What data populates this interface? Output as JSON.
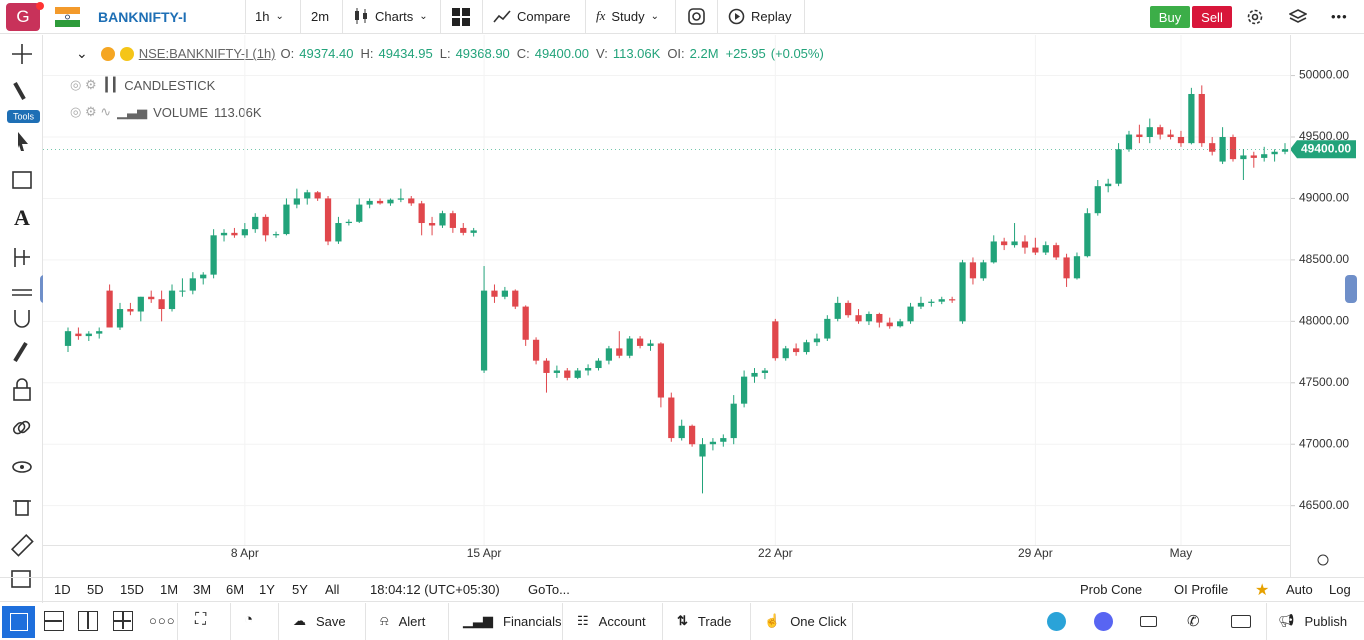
{
  "top_bar": {
    "symbol": "BANKNIFTY-I",
    "avatar": "G",
    "interval": "1h",
    "interval2": "2m",
    "charts": "Charts",
    "compare": "Compare",
    "study": "Study",
    "replay": "Replay",
    "buy": "Buy",
    "sell": "Sell"
  },
  "left_bar": {
    "tools": "Tools"
  },
  "legend": {
    "symbol": "NSE:BANKNIFTY-I (1h)",
    "fields": [
      {
        "label": "O:",
        "value": "49374.40"
      },
      {
        "label": "H:",
        "value": "49434.95"
      },
      {
        "label": "L:",
        "value": "49368.90"
      },
      {
        "label": "C:",
        "value": "49400.00"
      },
      {
        "label": "V:",
        "value": "113.06K"
      },
      {
        "label": "OI:",
        "value": "2.2M"
      }
    ],
    "change": "+25.95",
    "change_pct": "(+0.05%)",
    "study1": "CANDLESTICK",
    "study2": "VOLUME",
    "study2_value": "113.06K"
  },
  "chart_data": {
    "type": "candlestick",
    "up_color": "#22a37a",
    "down_color": "#e0474c",
    "grid": true,
    "ylim": [
      46180,
      50330
    ],
    "yticks": [
      {
        "value": 46500,
        "label": "46500.00"
      },
      {
        "value": 47000,
        "label": "47000.00"
      },
      {
        "value": 47500,
        "label": "47500.00"
      },
      {
        "value": 48000,
        "label": "48000.00"
      },
      {
        "value": 48500,
        "label": "48500.00"
      },
      {
        "value": 49000,
        "label": "49000.00"
      },
      {
        "value": 49500,
        "label": "49500.00"
      },
      {
        "value": 50000,
        "label": "50000.00"
      }
    ],
    "last_price": 49400,
    "last_price_label": "49400.00",
    "categories": [
      null,
      null,
      null,
      null,
      null,
      null,
      null,
      null,
      null,
      null,
      null,
      null,
      null,
      null,
      null,
      null,
      null,
      "8 Apr",
      null,
      null,
      null,
      null,
      null,
      null,
      null,
      null,
      null,
      null,
      null,
      null,
      null,
      null,
      null,
      null,
      null,
      null,
      null,
      null,
      null,
      null,
      "15 Apr",
      null,
      null,
      null,
      null,
      null,
      null,
      null,
      null,
      null,
      null,
      null,
      null,
      null,
      null,
      null,
      null,
      null,
      null,
      null,
      null,
      null,
      null,
      null,
      null,
      null,
      null,
      null,
      "22 Apr",
      null,
      null,
      null,
      null,
      null,
      null,
      null,
      null,
      null,
      null,
      null,
      null,
      null,
      null,
      null,
      null,
      null,
      null,
      null,
      null,
      null,
      null,
      null,
      null,
      "29 Apr",
      null,
      null,
      null,
      null,
      null,
      null,
      null,
      null,
      null,
      null,
      null,
      null,
      null,
      "May",
      null,
      null,
      null,
      null,
      null,
      null
    ],
    "candles": [
      [
        47800,
        47950,
        47750,
        47920
      ],
      [
        47900,
        47950,
        47850,
        47880
      ],
      [
        47880,
        47920,
        47840,
        47900
      ],
      [
        47900,
        47950,
        47860,
        47920
      ],
      [
        48250,
        48300,
        47950,
        47950
      ],
      [
        47950,
        48150,
        47930,
        48100
      ],
      [
        48100,
        48150,
        48050,
        48080
      ],
      [
        48080,
        48200,
        48000,
        48200
      ],
      [
        48200,
        48250,
        48150,
        48180
      ],
      [
        48180,
        48250,
        48000,
        48100
      ],
      [
        48100,
        48300,
        48080,
        48250
      ],
      [
        48250,
        48350,
        48200,
        48250
      ],
      [
        48250,
        48400,
        48220,
        48350
      ],
      [
        48350,
        48400,
        48300,
        48380
      ],
      [
        48380,
        48750,
        48350,
        48700
      ],
      [
        48700,
        48750,
        48650,
        48720
      ],
      [
        48720,
        48760,
        48680,
        48700
      ],
      [
        48700,
        48800,
        48680,
        48750
      ],
      [
        48750,
        48880,
        48720,
        48850
      ],
      [
        48850,
        48870,
        48650,
        48700
      ],
      [
        48700,
        48730,
        48680,
        48710
      ],
      [
        48710,
        49000,
        48700,
        48950
      ],
      [
        48950,
        49080,
        48920,
        49000
      ],
      [
        49000,
        49070,
        48950,
        49050
      ],
      [
        49050,
        49060,
        48980,
        49000
      ],
      [
        49000,
        49020,
        48620,
        48650
      ],
      [
        48650,
        48850,
        48630,
        48800
      ],
      [
        48800,
        48830,
        48780,
        48810
      ],
      [
        48810,
        49000,
        48800,
        48950
      ],
      [
        48950,
        49000,
        48920,
        48980
      ],
      [
        48980,
        49000,
        48950,
        48960
      ],
      [
        48960,
        49000,
        48940,
        48990
      ],
      [
        48990,
        49080,
        48970,
        49000
      ],
      [
        49000,
        49020,
        48940,
        48960
      ],
      [
        48960,
        48980,
        48700,
        48800
      ],
      [
        48800,
        48850,
        48700,
        48780
      ],
      [
        48780,
        48900,
        48760,
        48880
      ],
      [
        48880,
        48900,
        48720,
        48760
      ],
      [
        48760,
        48800,
        48700,
        48720
      ],
      [
        48720,
        48760,
        48690,
        48740
      ],
      [
        47600,
        48450,
        47580,
        48250
      ],
      [
        48250,
        48300,
        48150,
        48200
      ],
      [
        48200,
        48280,
        48180,
        48250
      ],
      [
        48250,
        48260,
        48100,
        48120
      ],
      [
        48120,
        48130,
        47800,
        47850
      ],
      [
        47850,
        47870,
        47650,
        47680
      ],
      [
        47680,
        47700,
        47420,
        47580
      ],
      [
        47580,
        47640,
        47540,
        47600
      ],
      [
        47600,
        47620,
        47520,
        47540
      ],
      [
        47540,
        47620,
        47530,
        47600
      ],
      [
        47600,
        47650,
        47560,
        47620
      ],
      [
        47620,
        47700,
        47600,
        47680
      ],
      [
        47680,
        47800,
        47650,
        47780
      ],
      [
        47780,
        47920,
        47700,
        47720
      ],
      [
        47720,
        47880,
        47700,
        47860
      ],
      [
        47860,
        47880,
        47780,
        47800
      ],
      [
        47800,
        47850,
        47760,
        47820
      ],
      [
        47820,
        47830,
        47300,
        47380
      ],
      [
        47380,
        47420,
        47020,
        47050
      ],
      [
        47050,
        47200,
        47030,
        47150
      ],
      [
        47150,
        47160,
        46980,
        47000
      ],
      [
        46900,
        47050,
        46600,
        47000
      ],
      [
        47000,
        47050,
        46950,
        47020
      ],
      [
        47020,
        47080,
        46980,
        47050
      ],
      [
        47050,
        47400,
        47000,
        47330
      ],
      [
        47330,
        47600,
        47300,
        47550
      ],
      [
        47550,
        47620,
        47500,
        47580
      ],
      [
        47580,
        47620,
        47530,
        47600
      ],
      [
        48000,
        48020,
        47680,
        47700
      ],
      [
        47700,
        47800,
        47680,
        47780
      ],
      [
        47780,
        47820,
        47720,
        47750
      ],
      [
        47750,
        47850,
        47730,
        47830
      ],
      [
        47830,
        47900,
        47800,
        47860
      ],
      [
        47860,
        48050,
        47840,
        48020
      ],
      [
        48020,
        48200,
        48000,
        48150
      ],
      [
        48150,
        48170,
        48030,
        48050
      ],
      [
        48050,
        48100,
        47980,
        48000
      ],
      [
        48000,
        48080,
        47970,
        48060
      ],
      [
        48060,
        48070,
        47950,
        47990
      ],
      [
        47990,
        48030,
        47940,
        47960
      ],
      [
        47960,
        48020,
        47950,
        48000
      ],
      [
        48000,
        48150,
        47980,
        48120
      ],
      [
        48120,
        48200,
        48100,
        48150
      ],
      [
        48150,
        48180,
        48120,
        48160
      ],
      [
        48160,
        48200,
        48140,
        48180
      ],
      [
        48180,
        48200,
        48150,
        48170
      ],
      [
        48000,
        48500,
        47980,
        48480
      ],
      [
        48480,
        48520,
        48300,
        48350
      ],
      [
        48350,
        48500,
        48330,
        48480
      ],
      [
        48480,
        48700,
        48470,
        48650
      ],
      [
        48650,
        48680,
        48580,
        48620
      ],
      [
        48620,
        48800,
        48600,
        48650
      ],
      [
        48650,
        48700,
        48550,
        48600
      ],
      [
        48600,
        48680,
        48540,
        48560
      ],
      [
        48560,
        48650,
        48540,
        48620
      ],
      [
        48620,
        48640,
        48500,
        48520
      ],
      [
        48520,
        48550,
        48280,
        48350
      ],
      [
        48350,
        48560,
        48340,
        48530
      ],
      [
        48530,
        48920,
        48520,
        48880
      ],
      [
        48880,
        49150,
        48860,
        49100
      ],
      [
        49100,
        49160,
        49050,
        49120
      ],
      [
        49120,
        49450,
        49100,
        49400
      ],
      [
        49400,
        49550,
        49380,
        49520
      ],
      [
        49520,
        49600,
        49450,
        49500
      ],
      [
        49500,
        49650,
        49450,
        49580
      ],
      [
        49580,
        49600,
        49480,
        49520
      ],
      [
        49520,
        49560,
        49480,
        49500
      ],
      [
        49500,
        49550,
        49420,
        49450
      ],
      [
        49450,
        49900,
        49440,
        49850
      ],
      [
        49850,
        49920,
        49420,
        49450
      ],
      [
        49450,
        49500,
        49350,
        49380
      ],
      [
        49300,
        49580,
        49280,
        49500
      ],
      [
        49500,
        49520,
        49300,
        49320
      ],
      [
        49320,
        49400,
        49150,
        49350
      ],
      [
        49350,
        49380,
        49250,
        49330
      ],
      [
        49330,
        49420,
        49300,
        49360
      ],
      [
        49360,
        49400,
        49300,
        49380
      ],
      [
        49380,
        49450,
        49360,
        49400
      ]
    ]
  },
  "range_bar": {
    "ranges": [
      "1D",
      "5D",
      "15D",
      "1M",
      "3M",
      "6M",
      "1Y",
      "5Y",
      "All"
    ],
    "clock": "18:04:12 (UTC+05:30)",
    "goto": "GoTo...",
    "prob_cone": "Prob Cone",
    "oi_profile": "OI Profile",
    "auto": "Auto",
    "log": "Log"
  },
  "bottom_bar": {
    "save": "Save",
    "alert": "Alert",
    "financials": "Financials",
    "account": "Account",
    "trade": "Trade",
    "one_click": "One Click",
    "publish": "Publish"
  }
}
